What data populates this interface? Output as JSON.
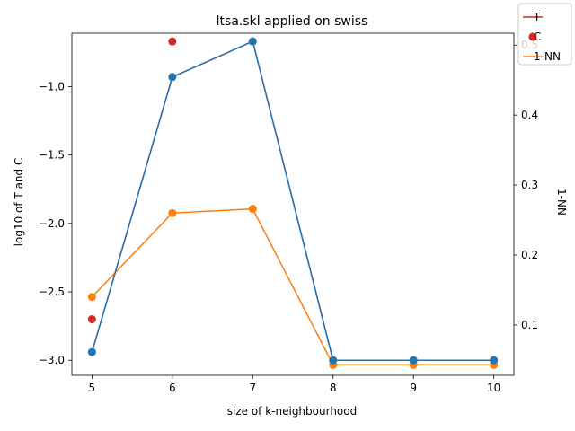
{
  "chart_data": {
    "type": "line",
    "title": "ltsa.skl applied on swiss",
    "xlabel": "size of k-neighbourhood",
    "ylabel_left": "log10 of T and C",
    "ylabel_right": "1-NN",
    "x": [
      5,
      6,
      7,
      8,
      9,
      10
    ],
    "x_ticks": [
      "5",
      "6",
      "7",
      "8",
      "9",
      "10"
    ],
    "xlim": [
      4.75,
      10.25
    ],
    "ylim_left": [
      -3.11,
      -0.61
    ],
    "y_ticks_left": [
      "−3.0",
      "−2.5",
      "−2.0",
      "−1.5",
      "−1.0"
    ],
    "y_ticks_left_values": [
      -3.0,
      -2.5,
      -2.0,
      -1.5,
      -1.0
    ],
    "ylim_right": [
      0.028,
      0.517
    ],
    "y_ticks_right": [
      "0.1",
      "0.2",
      "0.3",
      "0.4",
      "0.5"
    ],
    "y_ticks_right_values": [
      0.1,
      0.2,
      0.3,
      0.4,
      0.5
    ],
    "series": [
      {
        "name": "T",
        "axis": "left",
        "style": "line",
        "color": "#d62728",
        "values": [
          -2.94,
          -0.93,
          -0.67,
          -3.0,
          -3.0,
          -3.0
        ]
      },
      {
        "name": "C",
        "axis": "left",
        "style": "markers",
        "color": "#d62728",
        "values": [
          -2.7,
          -0.67,
          -0.67,
          -3.0,
          -3.0,
          -3.0
        ]
      },
      {
        "name": "1-NN",
        "axis": "right",
        "style": "line+markers",
        "color": "#ff7f0e",
        "values": [
          0.14,
          0.26,
          0.266,
          0.043,
          0.043,
          0.043
        ]
      },
      {
        "axis": "left",
        "style": "line+markers",
        "color": "#1f77b4",
        "values": [
          -2.94,
          -0.93,
          -0.67,
          -3.0,
          -3.0,
          -3.0
        ]
      }
    ],
    "legend": {
      "placement": "top-right",
      "entries": [
        "T",
        "C",
        "1-NN"
      ]
    }
  }
}
